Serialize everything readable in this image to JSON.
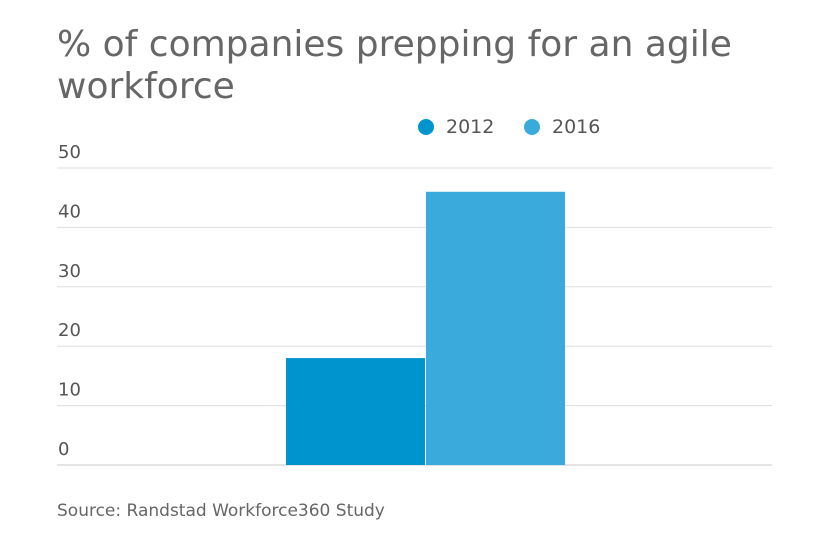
{
  "chart_data": {
    "type": "bar",
    "title": "% of companies prepping for an agile workforce",
    "categories": [
      ""
    ],
    "series": [
      {
        "name": "2012",
        "values": [
          18
        ],
        "color": "#0094ce"
      },
      {
        "name": "2016",
        "values": [
          46
        ],
        "color": "#3aaadd"
      }
    ],
    "ylim": [
      0,
      50
    ],
    "yticks": [
      "0",
      "10",
      "20",
      "30",
      "40",
      "50"
    ],
    "xlabel": "",
    "ylabel": "",
    "grid": true,
    "legend": "top-center"
  },
  "source": "Source: Randstad Workforce360 Study"
}
